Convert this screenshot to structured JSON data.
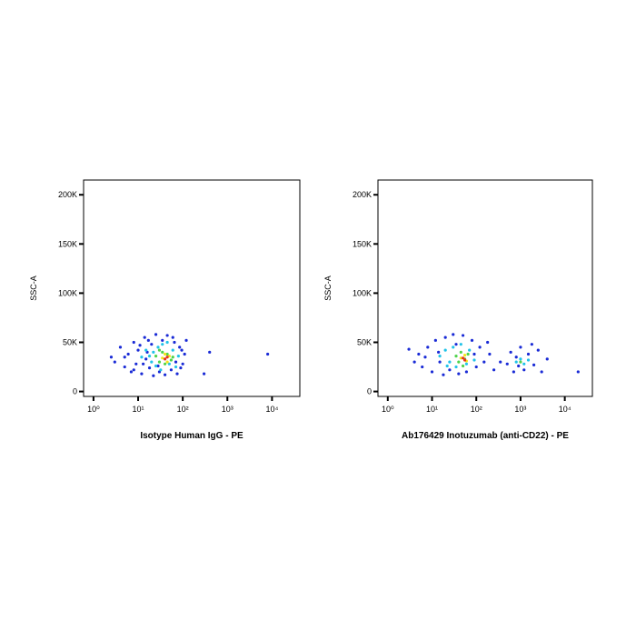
{
  "chart_data": [
    {
      "type": "scatter",
      "x_label": "Isotype Human IgG - PE",
      "y_label": "SSC-A",
      "log_x": true,
      "xlim": [
        0.6,
        42000
      ],
      "ylim": [
        -5000,
        215000
      ],
      "xticks": [
        {
          "value": 1,
          "label": "10⁰"
        },
        {
          "value": 10,
          "label": "10¹"
        },
        {
          "value": 100,
          "label": "10²"
        },
        {
          "value": 1000,
          "label": "10³"
        },
        {
          "value": 10000,
          "label": "10⁴"
        }
      ],
      "yticks": [
        {
          "value": 0,
          "label": "0"
        },
        {
          "value": 50000,
          "label": "50K"
        },
        {
          "value": 100000,
          "label": "100K"
        },
        {
          "value": 150000,
          "label": "150K"
        },
        {
          "value": 200000,
          "label": "200K"
        }
      ],
      "series": [
        {
          "color": "#1a2bd6",
          "x": [
            3,
            4,
            5,
            6,
            7,
            8,
            9,
            10,
            12,
            14,
            15,
            18,
            20,
            22,
            25,
            30,
            35,
            40,
            45,
            55,
            65,
            75,
            85,
            100,
            110,
            120,
            90,
            5,
            8,
            11,
            16,
            28,
            60,
            2.5,
            13,
            17,
            70,
            95,
            400,
            300,
            8000
          ],
          "y": [
            30000,
            45000,
            25000,
            38000,
            20000,
            50000,
            28000,
            42000,
            18000,
            55000,
            33000,
            24000,
            48000,
            16000,
            58000,
            20000,
            52000,
            17000,
            57000,
            22000,
            50000,
            18000,
            45000,
            28000,
            38000,
            52000,
            24000,
            35000,
            22000,
            47000,
            40000,
            26000,
            55000,
            35000,
            28000,
            52000,
            30000,
            42000,
            40000,
            18000,
            38000
          ]
        },
        {
          "color": "#21c3e8",
          "x": [
            12,
            15,
            20,
            22,
            25,
            28,
            32,
            35,
            50,
            60,
            70,
            80,
            18,
            45
          ],
          "y": [
            35000,
            42000,
            30000,
            40000,
            26000,
            45000,
            22000,
            48000,
            28000,
            42000,
            25000,
            36000,
            36000,
            50000
          ]
        },
        {
          "color": "#4fd34c",
          "x": [
            25,
            30,
            35,
            40,
            45,
            55,
            30,
            60
          ],
          "y": [
            36000,
            30000,
            40000,
            28000,
            38000,
            32000,
            42000,
            35000
          ]
        },
        {
          "color": "#f2e51a",
          "x": [
            35,
            40,
            45,
            50
          ],
          "y": [
            34000,
            38000,
            30000,
            36000
          ]
        },
        {
          "color": "#e8331c",
          "x": [
            40,
            45
          ],
          "y": [
            33000,
            35000
          ]
        }
      ]
    },
    {
      "type": "scatter",
      "x_label": "Ab176429 Inotuzumab (anti-CD22) - PE",
      "y_label": "SSC-A",
      "log_x": true,
      "xlim": [
        0.6,
        42000
      ],
      "ylim": [
        -5000,
        215000
      ],
      "xticks": [
        {
          "value": 1,
          "label": "10⁰"
        },
        {
          "value": 10,
          "label": "10¹"
        },
        {
          "value": 100,
          "label": "10²"
        },
        {
          "value": 1000,
          "label": "10³"
        },
        {
          "value": 10000,
          "label": "10⁴"
        }
      ],
      "yticks": [
        {
          "value": 0,
          "label": "0"
        },
        {
          "value": 50000,
          "label": "50K"
        },
        {
          "value": 100000,
          "label": "100K"
        },
        {
          "value": 150000,
          "label": "150K"
        },
        {
          "value": 200000,
          "label": "200K"
        }
      ],
      "series": [
        {
          "color": "#1a2bd6",
          "x": [
            3,
            4,
            5,
            6,
            8,
            10,
            12,
            15,
            18,
            20,
            25,
            30,
            40,
            50,
            60,
            80,
            100,
            120,
            150,
            180,
            200,
            250,
            7,
            14,
            35,
            90,
            350,
            500,
            600,
            700,
            800,
            1000,
            1200,
            1500,
            2000,
            2500,
            3000,
            4000,
            900,
            1800,
            20000
          ],
          "y": [
            43000,
            30000,
            38000,
            25000,
            45000,
            20000,
            52000,
            30000,
            17000,
            55000,
            22000,
            58000,
            18000,
            57000,
            20000,
            52000,
            25000,
            45000,
            30000,
            50000,
            38000,
            22000,
            35000,
            40000,
            48000,
            38000,
            30000,
            28000,
            40000,
            20000,
            35000,
            45000,
            22000,
            38000,
            27000,
            42000,
            20000,
            33000,
            26000,
            48000,
            20000
          ]
        },
        {
          "color": "#21c3e8",
          "x": [
            15,
            20,
            25,
            30,
            35,
            45,
            60,
            70,
            90,
            22,
            800,
            1000,
            1200,
            1500
          ],
          "y": [
            36000,
            42000,
            30000,
            45000,
            25000,
            48000,
            28000,
            42000,
            32000,
            26000,
            30000,
            33000,
            28000,
            32000
          ]
        },
        {
          "color": "#4fd34c",
          "x": [
            35,
            40,
            45,
            55,
            65,
            50,
            1000
          ],
          "y": [
            36000,
            30000,
            40000,
            33000,
            38000,
            26000,
            30000
          ]
        },
        {
          "color": "#f2e51a",
          "x": [
            45,
            55,
            60
          ],
          "y": [
            34000,
            37000,
            31000
          ]
        },
        {
          "color": "#e8331c",
          "x": [
            50,
            55
          ],
          "y": [
            34000,
            32000
          ]
        }
      ]
    }
  ]
}
